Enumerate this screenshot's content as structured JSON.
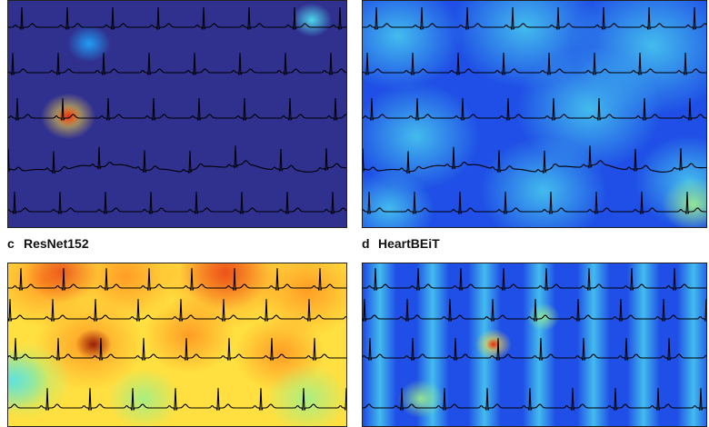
{
  "figure": {
    "panels": [
      {
        "id": "a",
        "letter": "",
        "title": "",
        "map": "sparse"
      },
      {
        "id": "b",
        "letter": "",
        "title": "",
        "map": "diffuse"
      },
      {
        "id": "c",
        "letter": "c",
        "title": "ResNet152",
        "map": "warm"
      },
      {
        "id": "d",
        "letter": "d",
        "title": "HeartBEiT",
        "map": "striped"
      }
    ]
  },
  "colors": {
    "colormap": [
      "#30308f",
      "#1f4fe6",
      "#1fa9ff",
      "#4fe0f0",
      "#9ef08a",
      "#ffe040",
      "#ff9020",
      "#e02010",
      "#800000"
    ],
    "trace": "#000000",
    "frame": "#222222"
  }
}
